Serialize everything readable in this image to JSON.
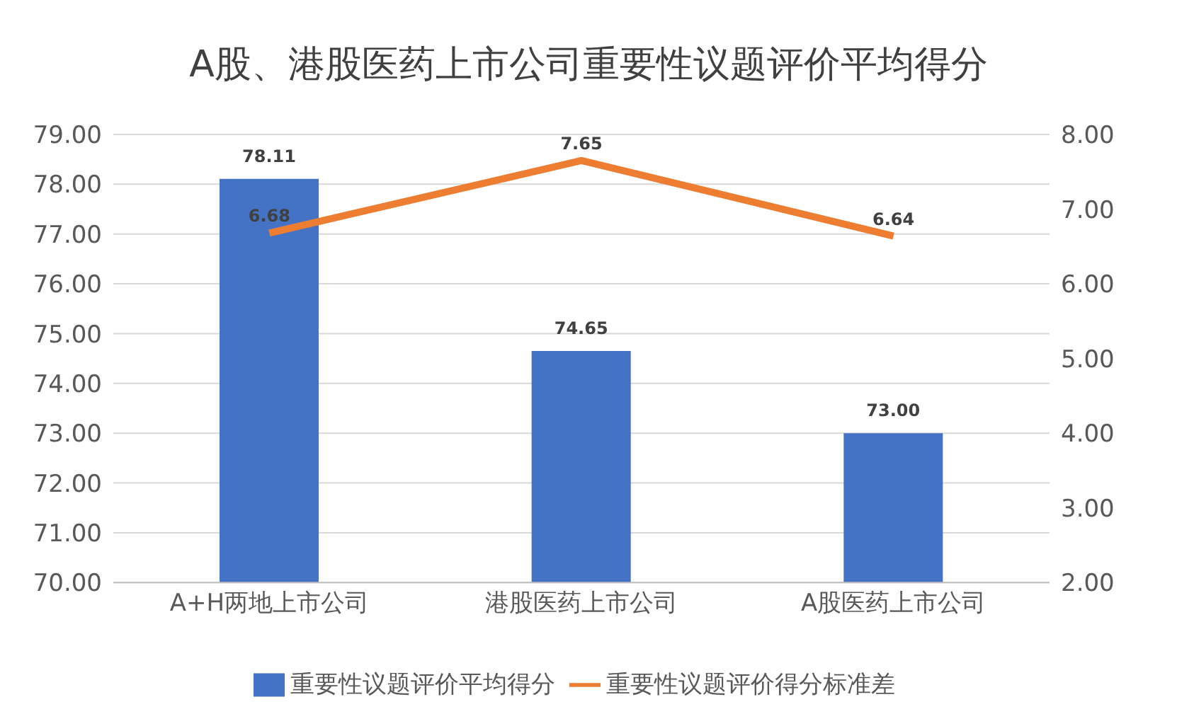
{
  "chart_data": {
    "type": "bar",
    "title": "A股、港股医药上市公司重要性议题评价平均得分",
    "categories": [
      "A+H两地上市公司",
      "港股医药上市公司",
      "A股医药上市公司"
    ],
    "series": [
      {
        "name": "重要性议题评价平均得分",
        "color": "#4472c4",
        "values": [
          78.11,
          74.65,
          73.0
        ],
        "value_labels": [
          "78.11",
          "74.65",
          "73.00"
        ]
      },
      {
        "name": "重要性议题评价得分标准差",
        "type": "line",
        "axis": "y2",
        "color": "#ed7d31",
        "values": [
          6.68,
          7.65,
          6.64
        ],
        "value_labels": [
          "6.68",
          "7.65",
          "6.64"
        ]
      }
    ],
    "ylim": [
      70,
      79
    ],
    "yticks": [
      {
        "value": 70,
        "label": "70.00"
      },
      {
        "value": 71,
        "label": "71.00"
      },
      {
        "value": 72,
        "label": "72.00"
      },
      {
        "value": 73,
        "label": "73.00"
      },
      {
        "value": 74,
        "label": "74.00"
      },
      {
        "value": 75,
        "label": "75.00"
      },
      {
        "value": 76,
        "label": "76.00"
      },
      {
        "value": 77,
        "label": "77.00"
      },
      {
        "value": 78,
        "label": "78.00"
      },
      {
        "value": 79,
        "label": "79.00"
      }
    ],
    "y2lim": [
      2,
      8
    ],
    "y2ticks": [
      {
        "value": 2,
        "label": "2.00"
      },
      {
        "value": 3,
        "label": "3.00"
      },
      {
        "value": 4,
        "label": "4.00"
      },
      {
        "value": 5,
        "label": "5.00"
      },
      {
        "value": 6,
        "label": "6.00"
      },
      {
        "value": 7,
        "label": "7.00"
      },
      {
        "value": 8,
        "label": "8.00"
      }
    ],
    "grid": "y",
    "legend": "bottom",
    "marker": "none",
    "line_style": "solid"
  }
}
